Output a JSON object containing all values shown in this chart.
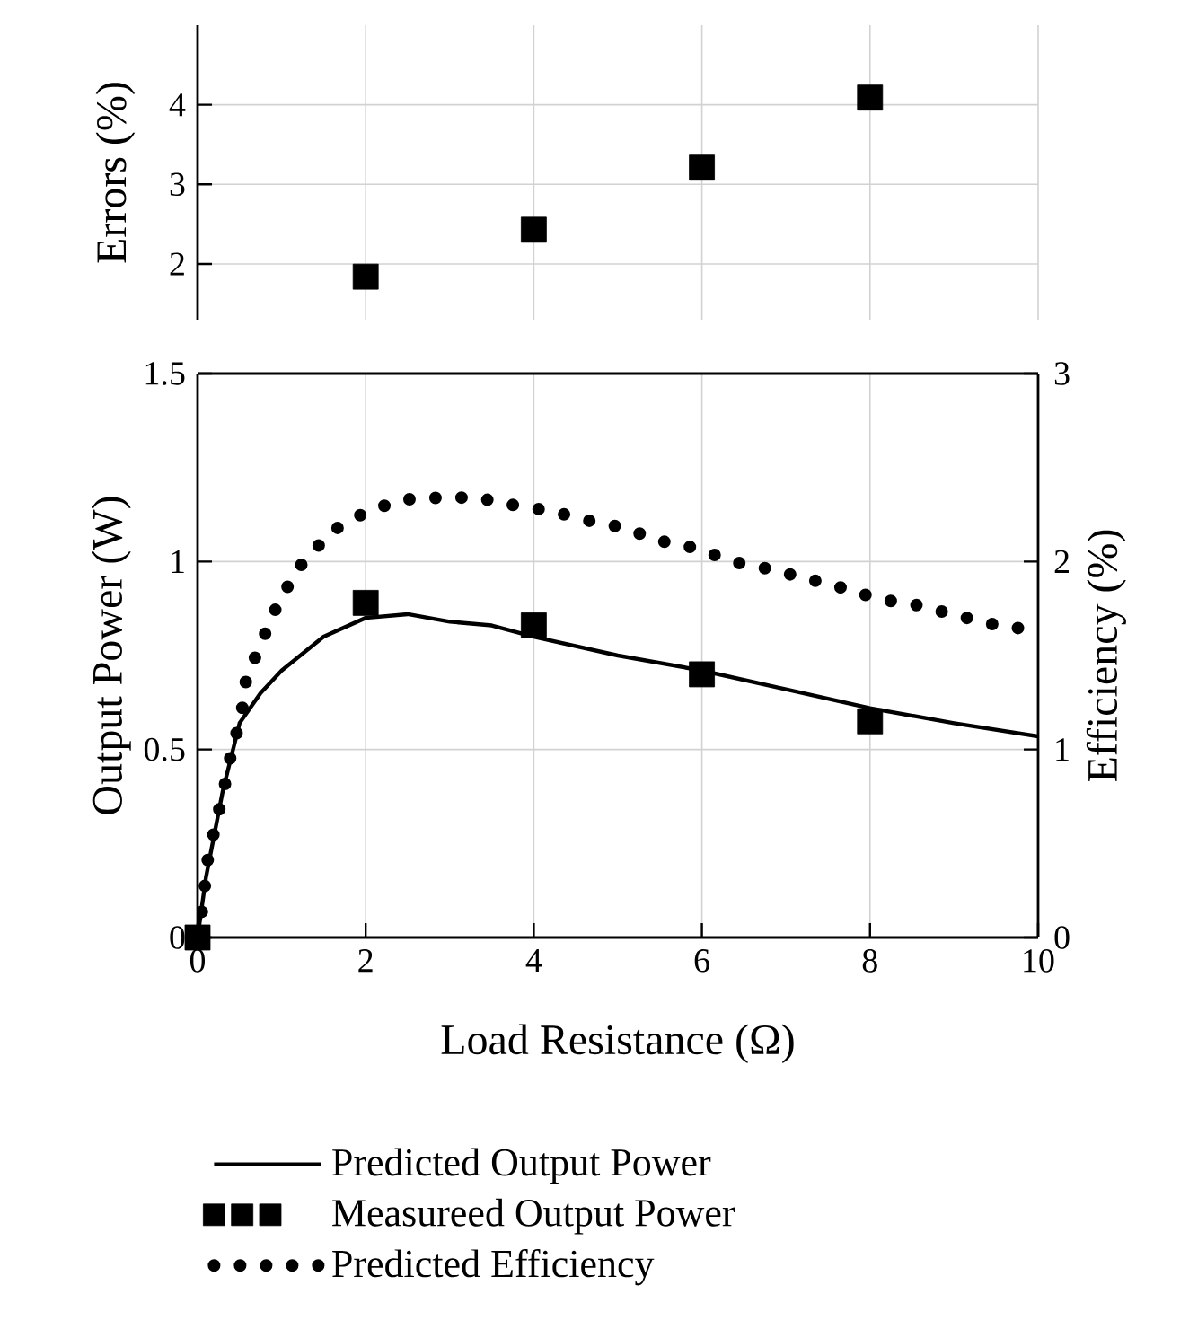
{
  "chart_data": [
    {
      "type": "scatter",
      "ylabel": "Errors (%)",
      "xlim": [
        0,
        10
      ],
      "xticks": [
        0,
        2,
        4,
        6,
        8,
        10
      ],
      "ylim": [
        1.3,
        5.0
      ],
      "yticks": [
        2,
        3,
        4
      ],
      "grid": true,
      "tick_labels": "y",
      "marker": "square",
      "color": "#000000",
      "x": [
        2,
        4,
        6,
        8
      ],
      "values": [
        1.84,
        2.43,
        3.21,
        4.09
      ]
    },
    {
      "type": "line",
      "xlabel": "Load Resistance (Ω)",
      "ylabel": "Output Power (W)",
      "y2label": "Efficiency (%)",
      "xlim": [
        0,
        10
      ],
      "xticks": [
        0,
        2,
        4,
        6,
        8,
        10
      ],
      "ylim": [
        0,
        1.5
      ],
      "yticks": [
        0,
        0.5,
        1,
        1.5
      ],
      "y2lim": [
        0,
        3
      ],
      "y2ticks": [
        0,
        1,
        2,
        3
      ],
      "grid": true,
      "legend": "bottom",
      "series": [
        {
          "name": "Predicted Output Power",
          "type": "line",
          "line_style": "solid",
          "color": "#000000",
          "x": [
            0,
            0.1,
            0.3,
            0.5,
            0.75,
            1.0,
            1.5,
            2,
            2.5,
            3,
            3.5,
            4,
            5,
            6,
            7,
            8,
            9,
            10
          ],
          "values": [
            0,
            0.16,
            0.39,
            0.57,
            0.65,
            0.71,
            0.8,
            0.85,
            0.86,
            0.84,
            0.83,
            0.8,
            0.75,
            0.71,
            0.66,
            0.61,
            0.57,
            0.535
          ]
        },
        {
          "name": "Measureed Output Power",
          "type": "scatter",
          "marker": "square",
          "color": "#000000",
          "x": [
            0,
            2,
            4,
            6,
            8
          ],
          "values": [
            0,
            0.89,
            0.83,
            0.7,
            0.575
          ]
        },
        {
          "name": "Predicted Efficiency",
          "type": "line",
          "line_style": "dotted",
          "axis": "y2",
          "color": "#000000",
          "x": [
            0,
            0.07,
            0.11,
            0.21,
            0.31,
            0.4,
            0.52,
            0.58,
            0.76,
            0.95,
            1.19,
            1.59,
            2.03,
            2.46,
            2.89,
            3.32,
            3.76,
            4.19,
            4.63,
            5.06,
            5.5,
            5.94,
            6.36,
            6.8,
            7.24,
            7.67,
            8.11,
            8.54,
            8.98,
            9.41,
            9.85
          ],
          "values": [
            0,
            0.19,
            0.39,
            0.59,
            0.78,
            0.98,
            1.18,
            1.38,
            1.57,
            1.77,
            1.96,
            2.16,
            2.27,
            2.33,
            2.34,
            2.34,
            2.3,
            2.27,
            2.22,
            2.18,
            2.11,
            2.07,
            2.0,
            1.96,
            1.91,
            1.86,
            1.8,
            1.77,
            1.72,
            1.67,
            1.64
          ]
        }
      ]
    }
  ]
}
